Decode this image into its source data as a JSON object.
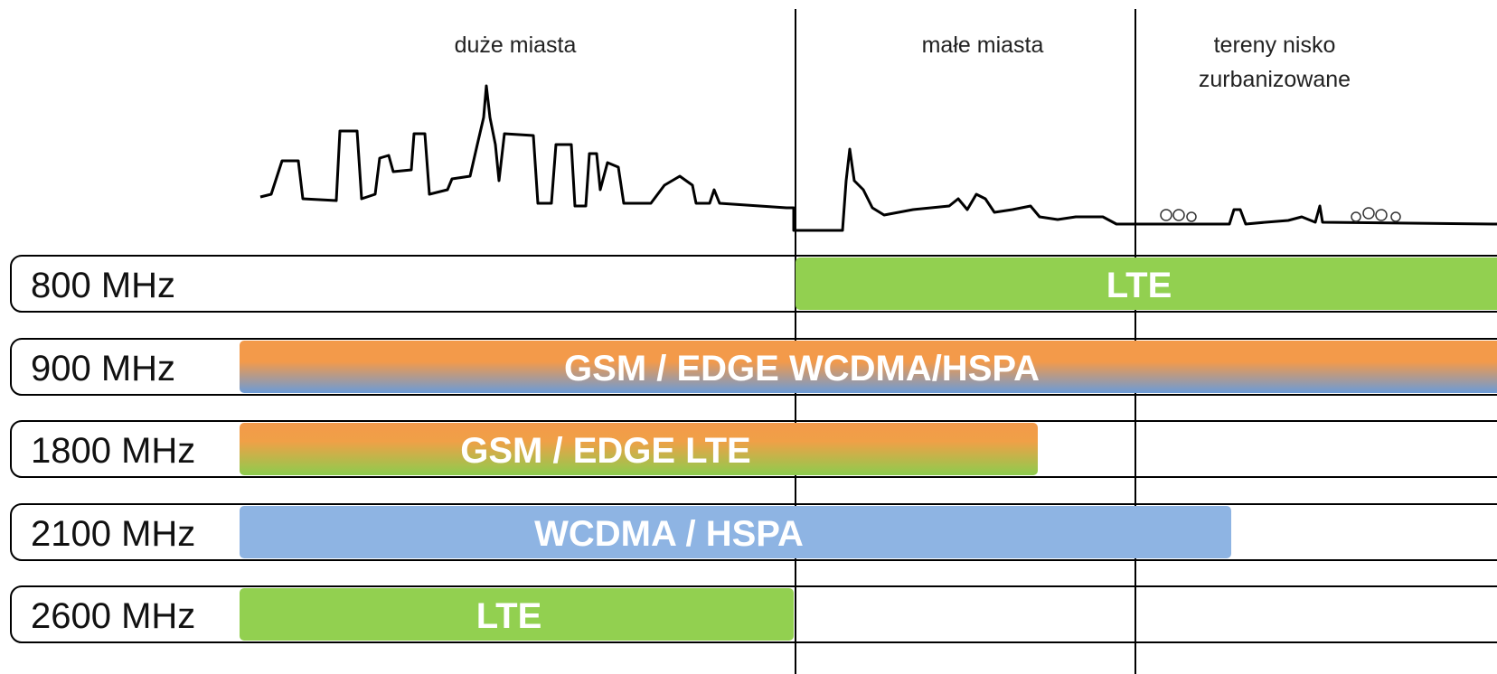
{
  "headers": {
    "large_cities": "duże miasta",
    "small_towns": "małe miasta",
    "rural": [
      "tereny nisko",
      "zurbanizowane"
    ]
  },
  "bands": [
    {
      "label": "800 MHz",
      "technology": "LTE"
    },
    {
      "label": "900 MHz",
      "technology": "GSM / EDGE WCDMA/HSPA"
    },
    {
      "label": "1800 MHz",
      "technology": "GSM / EDGE LTE"
    },
    {
      "label": "2100 MHz",
      "technology": "WCDMA / HSPA"
    },
    {
      "label": "2600 MHz",
      "technology": "LTE"
    }
  ]
}
